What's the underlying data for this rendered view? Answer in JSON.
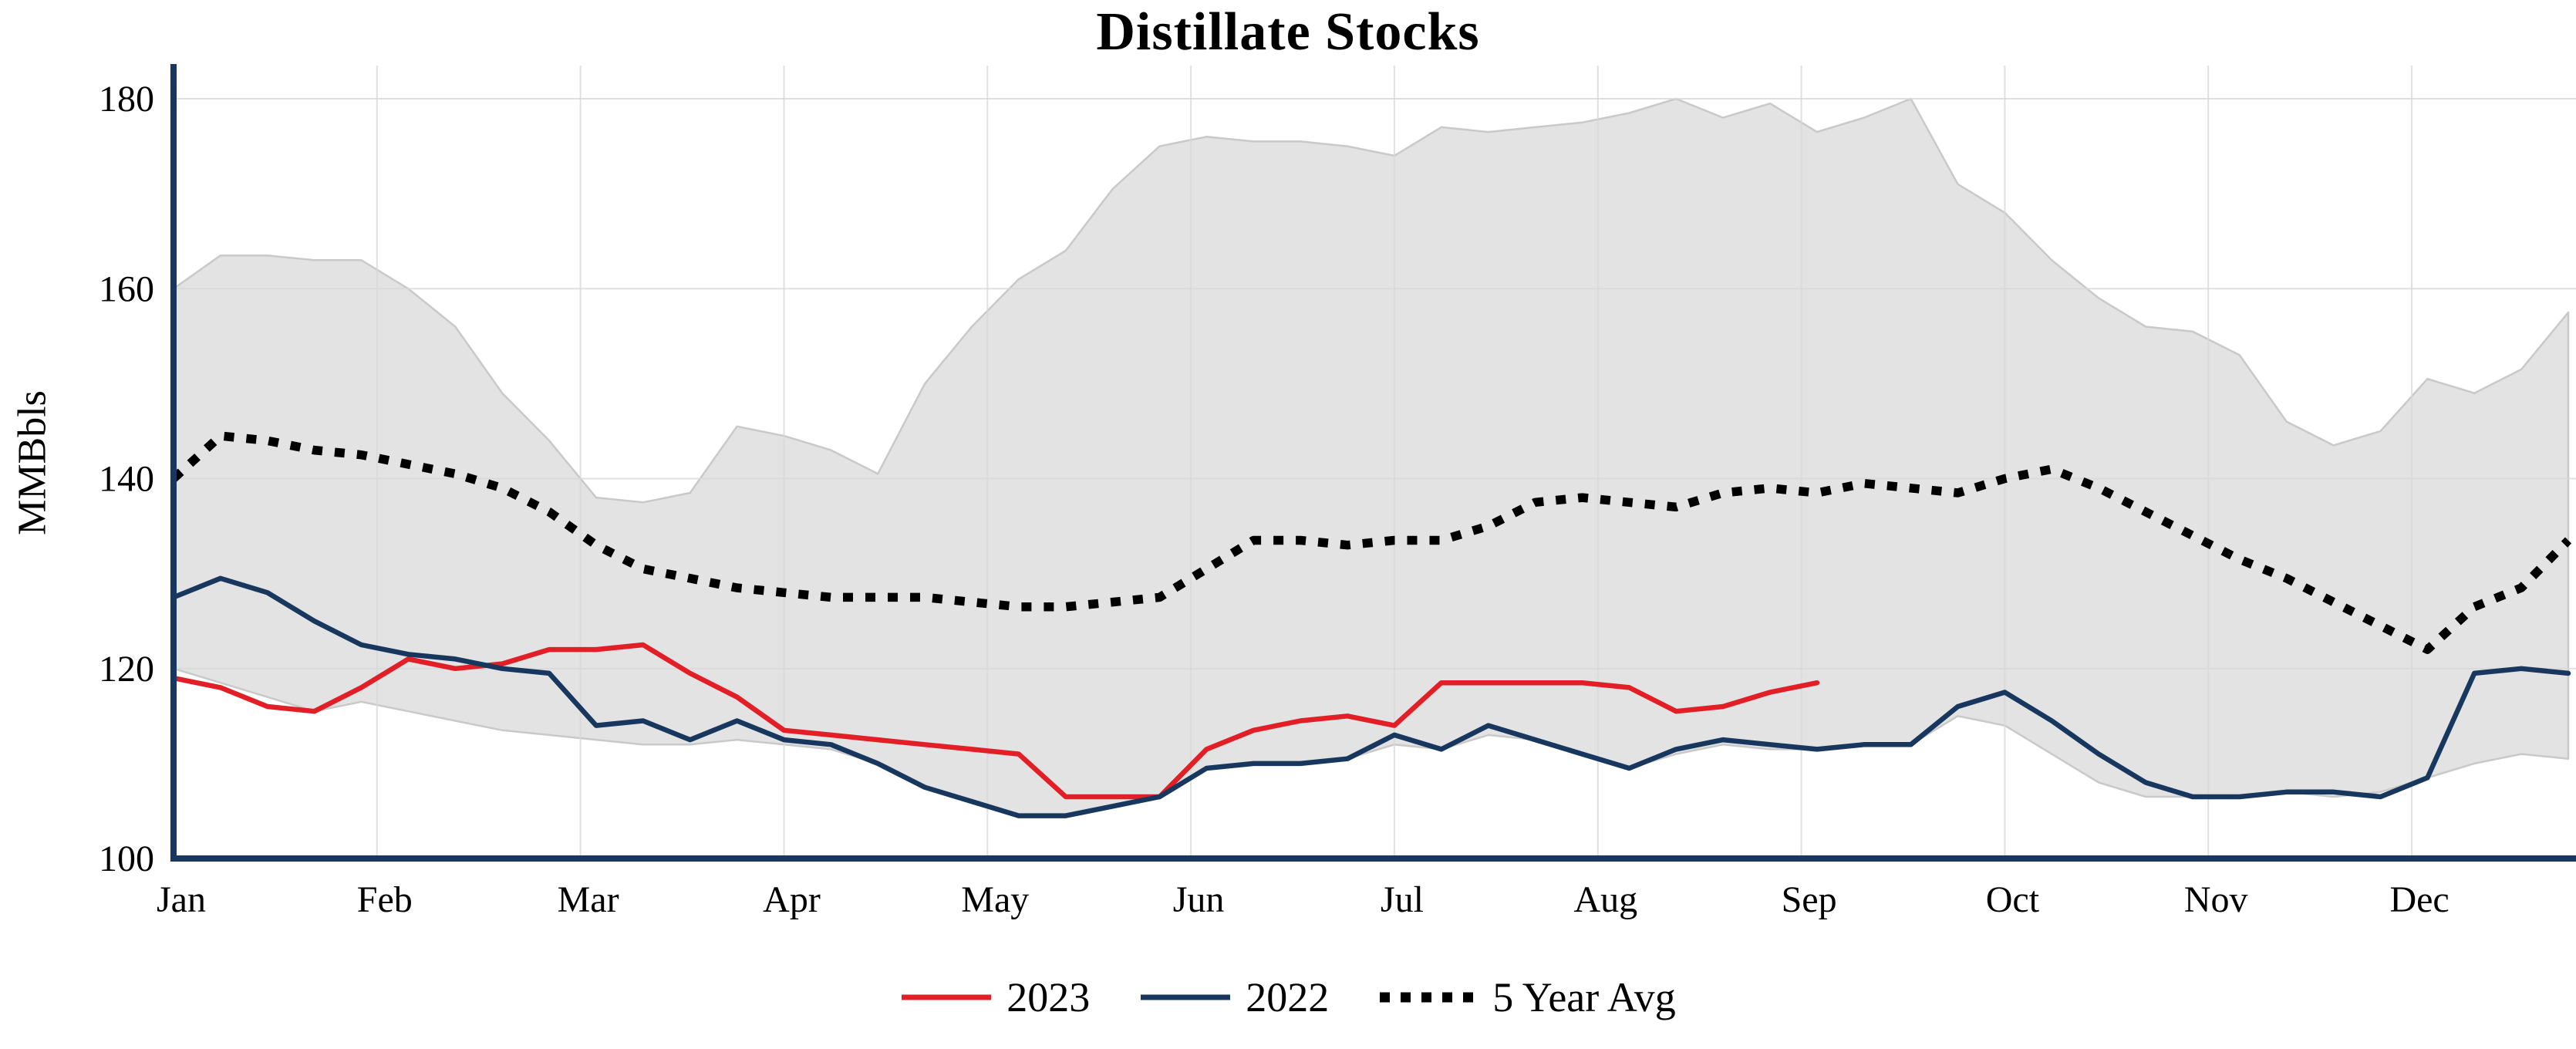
{
  "title": "Distillate Stocks",
  "y_axis_label": "MMBbls",
  "colors": {
    "red": "#e21f26",
    "navy": "#17375e",
    "avg": "#000000",
    "band": "#e3e3e3",
    "band_edge": "#c9c9c9",
    "grid": "#d9d9d9",
    "axis": "#17375e"
  },
  "chart_data": {
    "type": "line",
    "title": "Distillate Stocks",
    "xlabel": "",
    "ylabel": "MMBbls",
    "ylim": [
      100,
      180
    ],
    "y_ticks": [
      100,
      120,
      140,
      160,
      180
    ],
    "x_categories": [
      "Jan",
      "Feb",
      "Mar",
      "Apr",
      "May",
      "Jun",
      "Jul",
      "Aug",
      "Sep",
      "Oct",
      "Nov",
      "Dec"
    ],
    "x_unit": "weekly data points across one year",
    "weeks": 52,
    "grid": true,
    "legend_position": "bottom-center",
    "series": [
      {
        "name": "2023",
        "color": "#e21f26",
        "style": "solid",
        "values": [
          119,
          118,
          116,
          115.5,
          118,
          121,
          120,
          120.5,
          122,
          122,
          122.5,
          119.5,
          117,
          113.5,
          113,
          112.5,
          112,
          111.5,
          111,
          106.5,
          106.5,
          106.5,
          111.5,
          113.5,
          114.5,
          115,
          114,
          118.5,
          118.5,
          118.5,
          118.5,
          118,
          115.5,
          116,
          117.5,
          118.5
        ]
      },
      {
        "name": "2022",
        "color": "#17375e",
        "style": "solid",
        "values": [
          127.5,
          129.5,
          128,
          125,
          122.5,
          121.5,
          121,
          120,
          119.5,
          114,
          114.5,
          112.5,
          114.5,
          112.5,
          112,
          110,
          107.5,
          106,
          104.5,
          104.5,
          105.5,
          106.5,
          109.5,
          110,
          110,
          110.5,
          113,
          111.5,
          114,
          112.5,
          111,
          109.5,
          111.5,
          112.5,
          112,
          111.5,
          112,
          112,
          116,
          117.5,
          114.5,
          111,
          108,
          106.5,
          106.5,
          107,
          107,
          106.5,
          108.5,
          119.5,
          120,
          119.5
        ]
      },
      {
        "name": "5 Year Avg",
        "color": "#000000",
        "style": "dotted",
        "values": [
          140,
          144.5,
          144,
          143,
          142.5,
          141.5,
          140.5,
          139,
          136.5,
          133,
          130.5,
          129.5,
          128.5,
          128,
          127.5,
          127.5,
          127.5,
          127,
          126.5,
          126.5,
          127,
          127.5,
          130.5,
          133.5,
          133.5,
          133,
          133.5,
          133.5,
          135,
          137.5,
          138,
          137.5,
          137,
          138.5,
          139,
          138.5,
          139.5,
          139,
          138.5,
          140,
          141,
          139,
          136.5,
          134,
          131.5,
          129.5,
          127,
          124.5,
          122,
          126.5,
          128.5,
          133.5
        ]
      }
    ],
    "band": {
      "name": "5-year range",
      "color": "#e3e3e3",
      "edge_color": "#c9c9c9",
      "upper": [
        160,
        163.5,
        163.5,
        163,
        163,
        160,
        156,
        149,
        144,
        138,
        137.5,
        138.5,
        145.5,
        144.5,
        143,
        140.5,
        150,
        156,
        161,
        164,
        170.5,
        175,
        176,
        175.5,
        175.5,
        175,
        174,
        177,
        176.5,
        177,
        177.5,
        178.5,
        180,
        178,
        179.5,
        176.5,
        178,
        180,
        171,
        168,
        163,
        159,
        156,
        155.5,
        153,
        146,
        143.5,
        145,
        150.5,
        149,
        151.5,
        157.5
      ],
      "lower": [
        120,
        118.5,
        117,
        115.5,
        116.5,
        115.5,
        114.5,
        113.5,
        113,
        112.5,
        112,
        112,
        112.5,
        112,
        111.5,
        110,
        107.5,
        106,
        104.5,
        104.5,
        105.5,
        106.5,
        109.5,
        110,
        110,
        110.5,
        112,
        111.5,
        113,
        112.5,
        111,
        109.5,
        111,
        112,
        111.5,
        111.5,
        112,
        112,
        115,
        114,
        111,
        108,
        106.5,
        106.5,
        106.5,
        107,
        106.5,
        107,
        108.5,
        110,
        111,
        110.5
      ]
    }
  },
  "legend": {
    "item_2023": "2023",
    "item_2022": "2022",
    "item_avg": "5 Year Avg"
  }
}
